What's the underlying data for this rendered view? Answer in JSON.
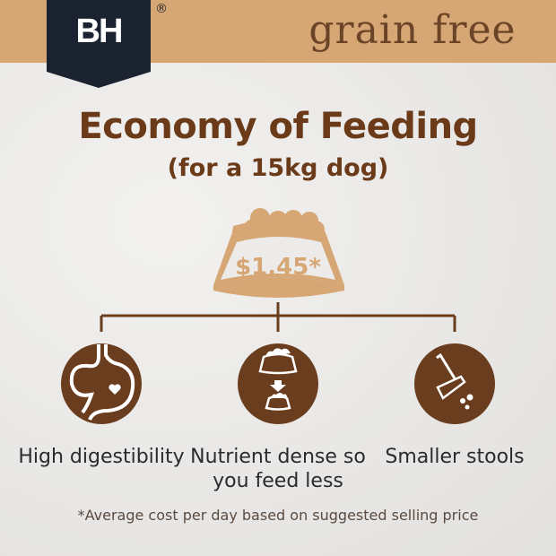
{
  "brand": {
    "logo_text": "BH",
    "registered": "®",
    "tagline": "grain free"
  },
  "title": "Economy of Feeding",
  "subtitle": "(for a 15kg dog)",
  "price": "$1.45*",
  "benefits": [
    {
      "icon": "stomach-heart-icon",
      "label": "High digestibility"
    },
    {
      "icon": "bowl-reduce-icon",
      "label": "Nutrient dense so you feed less"
    },
    {
      "icon": "scooper-icon",
      "label": "Smaller stools"
    }
  ],
  "footnote": "*Average cost per day based on suggested selling price",
  "colors": {
    "banner": "#d6a674",
    "brown": "#6a3d1e",
    "badge": "#1c2330"
  }
}
